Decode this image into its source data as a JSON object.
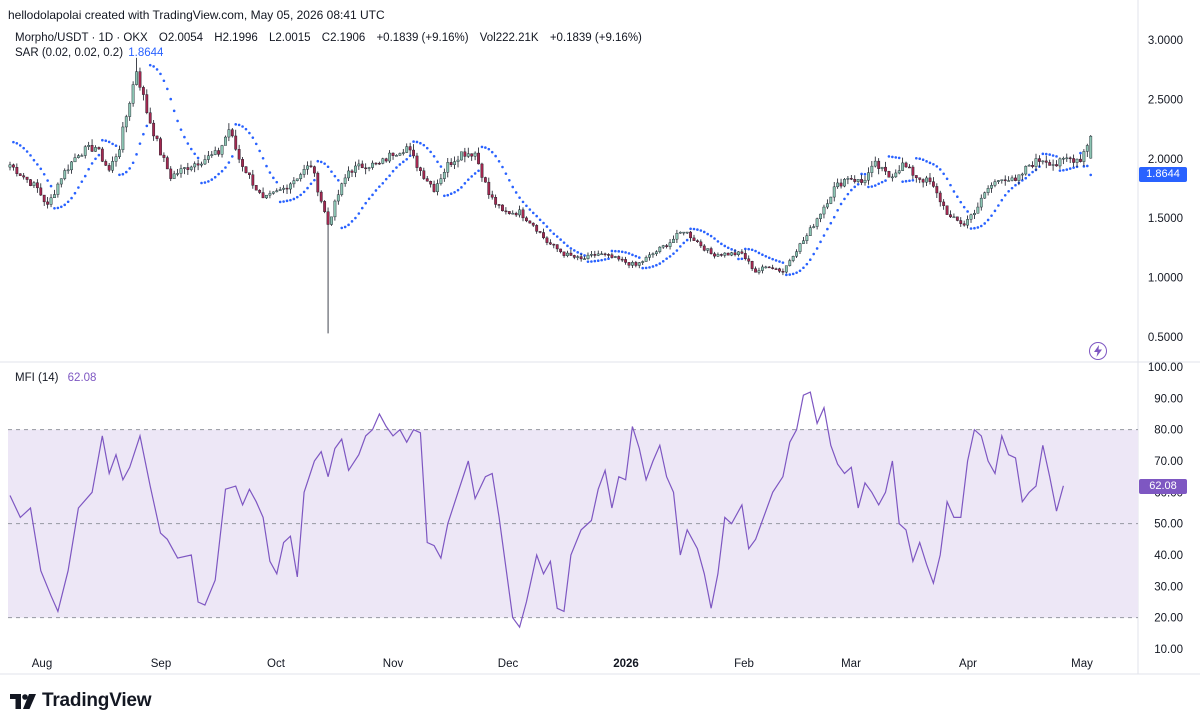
{
  "header": {
    "text": "hellodolapolai created with TradingView.com, May 05, 2026 08:41 UTC"
  },
  "legend": {
    "symbol": "Morpho/USDT · 1D · OKX",
    "open_label": "O",
    "open": "2.0054",
    "high_label": "H",
    "high": "2.1996",
    "low_label": "L",
    "low": "2.0015",
    "close_label": "C",
    "close": "2.1906",
    "change": "+0.1839 (+9.16%)",
    "vol_label": "Vol",
    "vol": "222.21K",
    "vol_change": "+0.1839 (+9.16%)",
    "sar_label": "SAR (0.02, 0.02, 0.2)",
    "sar_value": "1.8644",
    "mfi_label": "MFI (14)",
    "mfi_value": "62.08"
  },
  "brand": {
    "name": "TradingView",
    "logo_icon": "tradingview-logo-icon"
  },
  "colors": {
    "up": "#8cc5b3",
    "down": "#a3284f",
    "sar": "#2962ff",
    "mfi": "#7e57c2",
    "mfi_band": "#ede7f6"
  },
  "chart_data": [
    {
      "type": "candlestick",
      "title": "Morpho/USDT · 1D · OKX",
      "ylim": [
        0.3,
        3.2
      ],
      "y_ticks": [
        "3.0000",
        "2.5000",
        "2.0000",
        "1.5000",
        "1.0000",
        "0.5000"
      ],
      "x_ticks": [
        "Aug",
        "Sep",
        "Oct",
        "Nov",
        "Dec",
        "2026",
        "Feb",
        "Mar",
        "Apr",
        "May"
      ],
      "last_bar": {
        "open": 2.0054,
        "high": 2.1996,
        "low": 2.0015,
        "close": 2.1906
      },
      "overlay": {
        "name": "SAR (0.02, 0.02, 0.2)",
        "last_value": 1.8644
      },
      "anchors": [
        {
          "t": 0,
          "p": 1.95
        },
        {
          "t": 8,
          "p": 1.75
        },
        {
          "t": 11,
          "p": 1.6
        },
        {
          "t": 15,
          "p": 1.85
        },
        {
          "t": 20,
          "p": 2.05
        },
        {
          "t": 25,
          "p": 2.1
        },
        {
          "t": 29,
          "p": 1.9
        },
        {
          "t": 32,
          "p": 2.1
        },
        {
          "t": 37,
          "p": 2.75
        },
        {
          "t": 40,
          "p": 2.4
        },
        {
          "t": 44,
          "p": 2.05
        },
        {
          "t": 47,
          "p": 1.85
        },
        {
          "t": 53,
          "p": 1.95
        },
        {
          "t": 57,
          "p": 2.0
        },
        {
          "t": 61,
          "p": 2.05
        },
        {
          "t": 64,
          "p": 2.25
        },
        {
          "t": 67,
          "p": 2.0
        },
        {
          "t": 70,
          "p": 1.85
        },
        {
          "t": 74,
          "p": 1.65
        },
        {
          "t": 80,
          "p": 1.75
        },
        {
          "t": 84,
          "p": 1.85
        },
        {
          "t": 88,
          "p": 1.95
        },
        {
          "t": 93,
          "p": 1.45
        },
        {
          "t": 96,
          "p": 1.7
        },
        {
          "t": 99,
          "p": 1.9
        },
        {
          "t": 104,
          "p": 1.95
        },
        {
          "t": 108,
          "p": 1.95
        },
        {
          "t": 112,
          "p": 2.05
        },
        {
          "t": 116,
          "p": 2.1
        },
        {
          "t": 120,
          "p": 1.9
        },
        {
          "t": 124,
          "p": 1.75
        },
        {
          "t": 128,
          "p": 1.95
        },
        {
          "t": 132,
          "p": 2.05
        },
        {
          "t": 136,
          "p": 2.05
        },
        {
          "t": 140,
          "p": 1.7
        },
        {
          "t": 144,
          "p": 1.55
        },
        {
          "t": 149,
          "p": 1.55
        },
        {
          "t": 153,
          "p": 1.45
        },
        {
          "t": 157,
          "p": 1.3
        },
        {
          "t": 162,
          "p": 1.2
        },
        {
          "t": 167,
          "p": 1.15
        },
        {
          "t": 172,
          "p": 1.2
        },
        {
          "t": 178,
          "p": 1.15
        },
        {
          "t": 183,
          "p": 1.1
        },
        {
          "t": 188,
          "p": 1.2
        },
        {
          "t": 193,
          "p": 1.3
        },
        {
          "t": 197,
          "p": 1.4
        },
        {
          "t": 201,
          "p": 1.3
        },
        {
          "t": 205,
          "p": 1.2
        },
        {
          "t": 210,
          "p": 1.2
        },
        {
          "t": 214,
          "p": 1.2
        },
        {
          "t": 218,
          "p": 1.05
        },
        {
          "t": 222,
          "p": 1.1
        },
        {
          "t": 226,
          "p": 1.05
        },
        {
          "t": 229,
          "p": 1.2
        },
        {
          "t": 233,
          "p": 1.35
        },
        {
          "t": 237,
          "p": 1.55
        },
        {
          "t": 241,
          "p": 1.75
        },
        {
          "t": 245,
          "p": 1.85
        },
        {
          "t": 249,
          "p": 1.8
        },
        {
          "t": 253,
          "p": 1.95
        },
        {
          "t": 257,
          "p": 1.85
        },
        {
          "t": 261,
          "p": 1.95
        },
        {
          "t": 265,
          "p": 1.85
        },
        {
          "t": 269,
          "p": 1.8
        },
        {
          "t": 272,
          "p": 1.65
        },
        {
          "t": 275,
          "p": 1.5
        },
        {
          "t": 279,
          "p": 1.45
        },
        {
          "t": 283,
          "p": 1.6
        },
        {
          "t": 286,
          "p": 1.75
        },
        {
          "t": 290,
          "p": 1.85
        },
        {
          "t": 294,
          "p": 1.8
        },
        {
          "t": 298,
          "p": 1.95
        },
        {
          "t": 302,
          "p": 2.0
        },
        {
          "t": 306,
          "p": 1.95
        },
        {
          "t": 309,
          "p": 2.0
        },
        {
          "t": 313,
          "p": 2.0
        },
        {
          "t": 316,
          "p": 2.19
        }
      ],
      "spikes": [
        {
          "t": 93,
          "low": 0.53
        },
        {
          "t": 37,
          "high": 2.85
        }
      ]
    },
    {
      "type": "line",
      "title": "MFI (14)",
      "ylim": [
        10,
        100
      ],
      "y_ticks": [
        "100.00",
        "90.00",
        "80.00",
        "70.00",
        "60.00",
        "50.00",
        "40.00",
        "30.00",
        "20.00",
        "10.00"
      ],
      "bands": {
        "upper": 80,
        "middle": 50,
        "lower": 20
      },
      "last_value": 62.08,
      "anchors": [
        {
          "t": 0,
          "v": 59
        },
        {
          "t": 3,
          "v": 52
        },
        {
          "t": 6,
          "v": 55
        },
        {
          "t": 9,
          "v": 35
        },
        {
          "t": 12,
          "v": 27
        },
        {
          "t": 14,
          "v": 22
        },
        {
          "t": 17,
          "v": 35
        },
        {
          "t": 20,
          "v": 55
        },
        {
          "t": 24,
          "v": 60
        },
        {
          "t": 27,
          "v": 78
        },
        {
          "t": 29,
          "v": 66
        },
        {
          "t": 31,
          "v": 72
        },
        {
          "t": 33,
          "v": 64
        },
        {
          "t": 35,
          "v": 68
        },
        {
          "t": 38,
          "v": 78
        },
        {
          "t": 41,
          "v": 62
        },
        {
          "t": 44,
          "v": 47
        },
        {
          "t": 46,
          "v": 45
        },
        {
          "t": 49,
          "v": 39
        },
        {
          "t": 53,
          "v": 40
        },
        {
          "t": 55,
          "v": 25
        },
        {
          "t": 57,
          "v": 24
        },
        {
          "t": 60,
          "v": 32
        },
        {
          "t": 63,
          "v": 61
        },
        {
          "t": 66,
          "v": 62
        },
        {
          "t": 68,
          "v": 56
        },
        {
          "t": 70,
          "v": 61
        },
        {
          "t": 72,
          "v": 57
        },
        {
          "t": 74,
          "v": 52
        },
        {
          "t": 76,
          "v": 38
        },
        {
          "t": 78,
          "v": 34
        },
        {
          "t": 80,
          "v": 44
        },
        {
          "t": 82,
          "v": 46
        },
        {
          "t": 84,
          "v": 33
        },
        {
          "t": 86,
          "v": 60
        },
        {
          "t": 89,
          "v": 70
        },
        {
          "t": 91,
          "v": 73
        },
        {
          "t": 93,
          "v": 65
        },
        {
          "t": 95,
          "v": 74
        },
        {
          "t": 97,
          "v": 77
        },
        {
          "t": 99,
          "v": 67
        },
        {
          "t": 102,
          "v": 72
        },
        {
          "t": 104,
          "v": 78
        },
        {
          "t": 106,
          "v": 80
        },
        {
          "t": 108,
          "v": 85
        },
        {
          "t": 110,
          "v": 81
        },
        {
          "t": 112,
          "v": 78
        },
        {
          "t": 114,
          "v": 80
        },
        {
          "t": 116,
          "v": 76
        },
        {
          "t": 118,
          "v": 80
        },
        {
          "t": 120,
          "v": 79
        },
        {
          "t": 122,
          "v": 44
        },
        {
          "t": 124,
          "v": 43
        },
        {
          "t": 126,
          "v": 39
        },
        {
          "t": 128,
          "v": 50
        },
        {
          "t": 131,
          "v": 60
        },
        {
          "t": 134,
          "v": 70
        },
        {
          "t": 136,
          "v": 58
        },
        {
          "t": 139,
          "v": 65
        },
        {
          "t": 141,
          "v": 66
        },
        {
          "t": 143,
          "v": 52
        },
        {
          "t": 145,
          "v": 36
        },
        {
          "t": 147,
          "v": 20
        },
        {
          "t": 149,
          "v": 17
        },
        {
          "t": 151,
          "v": 25
        },
        {
          "t": 154,
          "v": 40
        },
        {
          "t": 156,
          "v": 34
        },
        {
          "t": 158,
          "v": 38
        },
        {
          "t": 160,
          "v": 23
        },
        {
          "t": 162,
          "v": 22
        },
        {
          "t": 164,
          "v": 40
        },
        {
          "t": 167,
          "v": 48
        },
        {
          "t": 170,
          "v": 51
        },
        {
          "t": 172,
          "v": 61
        },
        {
          "t": 174,
          "v": 67
        },
        {
          "t": 176,
          "v": 55
        },
        {
          "t": 178,
          "v": 65
        },
        {
          "t": 180,
          "v": 64
        },
        {
          "t": 182,
          "v": 81
        },
        {
          "t": 184,
          "v": 74
        },
        {
          "t": 186,
          "v": 64
        },
        {
          "t": 188,
          "v": 70
        },
        {
          "t": 190,
          "v": 75
        },
        {
          "t": 192,
          "v": 65
        },
        {
          "t": 194,
          "v": 60
        },
        {
          "t": 196,
          "v": 40
        },
        {
          "t": 198,
          "v": 48
        },
        {
          "t": 201,
          "v": 42
        },
        {
          "t": 203,
          "v": 34
        },
        {
          "t": 205,
          "v": 23
        },
        {
          "t": 207,
          "v": 34
        },
        {
          "t": 209,
          "v": 52
        },
        {
          "t": 211,
          "v": 50
        },
        {
          "t": 214,
          "v": 56
        },
        {
          "t": 216,
          "v": 42
        },
        {
          "t": 218,
          "v": 45
        },
        {
          "t": 220,
          "v": 51
        },
        {
          "t": 223,
          "v": 60
        },
        {
          "t": 226,
          "v": 65
        },
        {
          "t": 228,
          "v": 76
        },
        {
          "t": 230,
          "v": 80
        },
        {
          "t": 232,
          "v": 91
        },
        {
          "t": 234,
          "v": 92
        },
        {
          "t": 236,
          "v": 82
        },
        {
          "t": 238,
          "v": 87
        },
        {
          "t": 240,
          "v": 75
        },
        {
          "t": 242,
          "v": 69
        },
        {
          "t": 244,
          "v": 66
        },
        {
          "t": 246,
          "v": 68
        },
        {
          "t": 248,
          "v": 55
        },
        {
          "t": 250,
          "v": 63
        },
        {
          "t": 252,
          "v": 60
        },
        {
          "t": 254,
          "v": 56
        },
        {
          "t": 256,
          "v": 60
        },
        {
          "t": 258,
          "v": 70
        },
        {
          "t": 260,
          "v": 50
        },
        {
          "t": 262,
          "v": 48
        },
        {
          "t": 264,
          "v": 38
        },
        {
          "t": 266,
          "v": 44
        },
        {
          "t": 268,
          "v": 37
        },
        {
          "t": 270,
          "v": 31
        },
        {
          "t": 272,
          "v": 40
        },
        {
          "t": 274,
          "v": 57
        },
        {
          "t": 276,
          "v": 52
        },
        {
          "t": 278,
          "v": 52
        },
        {
          "t": 280,
          "v": 70
        },
        {
          "t": 282,
          "v": 80
        },
        {
          "t": 284,
          "v": 78
        },
        {
          "t": 286,
          "v": 70
        },
        {
          "t": 288,
          "v": 66
        },
        {
          "t": 290,
          "v": 78
        },
        {
          "t": 292,
          "v": 72
        },
        {
          "t": 294,
          "v": 71
        },
        {
          "t": 296,
          "v": 57
        },
        {
          "t": 298,
          "v": 60
        },
        {
          "t": 300,
          "v": 62
        },
        {
          "t": 302,
          "v": 75
        },
        {
          "t": 304,
          "v": 65
        },
        {
          "t": 306,
          "v": 54
        },
        {
          "t": 308,
          "v": 62.08
        }
      ]
    }
  ]
}
